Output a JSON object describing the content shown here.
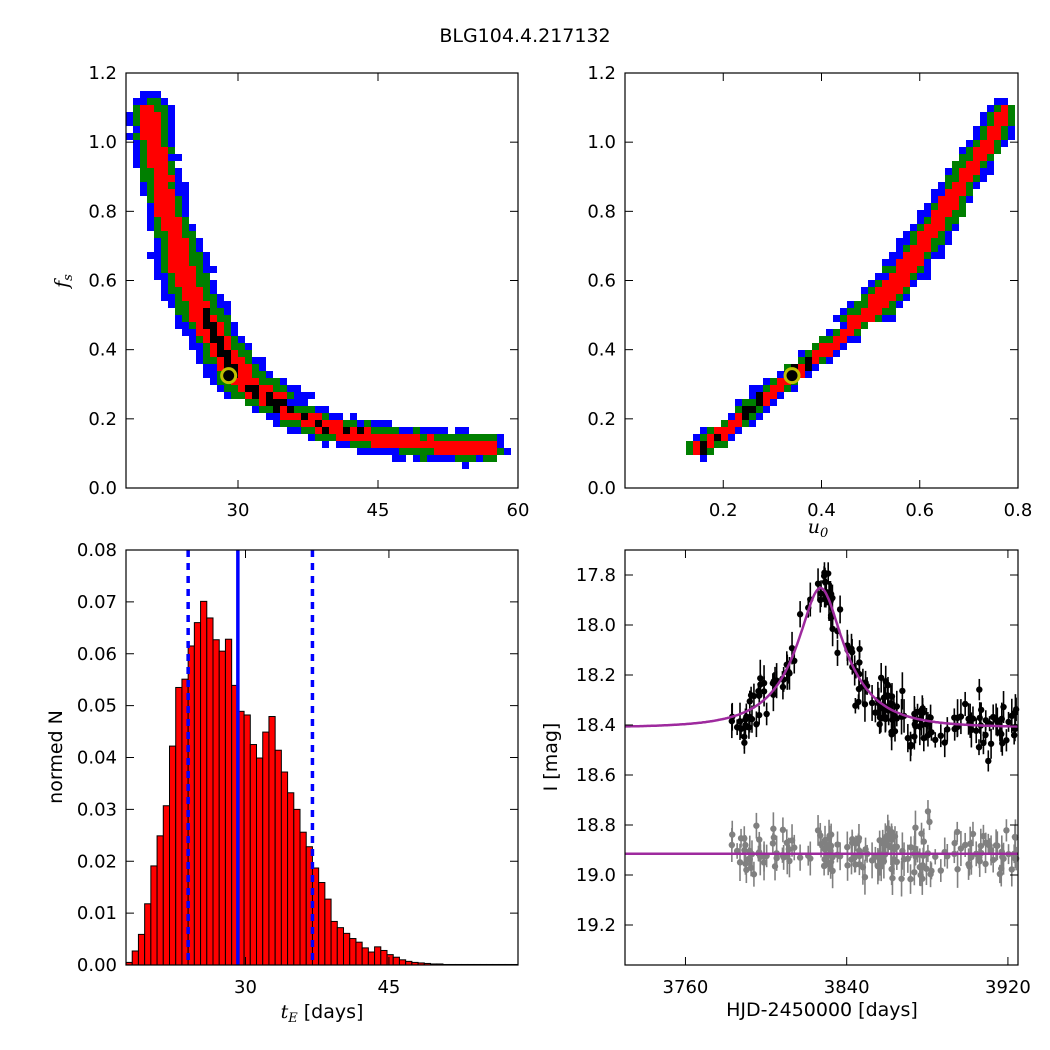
{
  "title": "BLG104.4.217132",
  "colors": {
    "blue": "#0000ff",
    "green": "#007f00",
    "red": "#ff0000",
    "black": "#000000",
    "marker_edge": "#bfbf00",
    "fit": "#9e2a9e",
    "gray": "#808080"
  },
  "chart_data": [
    {
      "id": "fs_vs_tE",
      "type": "heatmap",
      "xlabel": "",
      "ylabel": "f_s",
      "xlim": [
        18,
        60
      ],
      "ylim": [
        0.0,
        1.2
      ],
      "xticks": [
        30,
        45,
        60
      ],
      "yticks": [
        0.0,
        0.2,
        0.4,
        0.6,
        0.8,
        1.0,
        1.2
      ],
      "ytick_labels": [
        "0.0",
        "0.2",
        "0.4",
        "0.6",
        "0.8",
        "1.0",
        "1.2"
      ],
      "relation": "f_s decreases with t_E; confidence regions black < red < green < blue",
      "curve": [
        [
          20.5,
          1.08
        ],
        [
          21.5,
          0.92
        ],
        [
          22.5,
          0.8
        ],
        [
          24,
          0.64
        ],
        [
          25.5,
          0.54
        ],
        [
          27,
          0.46
        ],
        [
          29,
          0.37
        ],
        [
          31,
          0.3
        ],
        [
          33,
          0.26
        ],
        [
          36,
          0.21
        ],
        [
          39,
          0.18
        ],
        [
          42,
          0.16
        ],
        [
          46,
          0.14
        ],
        [
          50,
          0.125
        ],
        [
          54,
          0.117
        ],
        [
          57,
          0.115
        ]
      ],
      "best_fit": {
        "x": 29.0,
        "y": 0.325
      }
    },
    {
      "id": "fs_vs_u0",
      "type": "heatmap",
      "xlabel": "u_0",
      "ylabel": "",
      "xlim": [
        0.0,
        0.8
      ],
      "ylim": [
        0.0,
        1.2
      ],
      "xticks": [
        0.2,
        0.4,
        0.6,
        0.8
      ],
      "xtick_labels": [
        "0.2",
        "0.4",
        "0.6",
        "0.8"
      ],
      "yticks": [
        0.0,
        0.2,
        0.4,
        0.6,
        0.8,
        1.0,
        1.2
      ],
      "ytick_labels": [
        "0.0",
        "0.2",
        "0.4",
        "0.6",
        "0.8",
        "1.0",
        "1.2"
      ],
      "relation": "f_s increases with u_0; confidence regions black < red < green < blue",
      "curve": [
        [
          0.15,
          0.115
        ],
        [
          0.2,
          0.16
        ],
        [
          0.25,
          0.22
        ],
        [
          0.3,
          0.28
        ],
        [
          0.34,
          0.325
        ],
        [
          0.4,
          0.39
        ],
        [
          0.45,
          0.45
        ],
        [
          0.5,
          0.51
        ],
        [
          0.55,
          0.59
        ],
        [
          0.6,
          0.69
        ],
        [
          0.65,
          0.8
        ],
        [
          0.7,
          0.92
        ],
        [
          0.74,
          1.0
        ],
        [
          0.77,
          1.08
        ]
      ],
      "best_fit": {
        "x": 0.34,
        "y": 0.325
      }
    },
    {
      "id": "tE_histogram",
      "type": "bar",
      "xlabel": "t_E [days]",
      "ylabel": "normed N",
      "xlim": [
        17.5,
        58.5
      ],
      "ylim": [
        0.0,
        0.08
      ],
      "xticks": [
        30,
        45
      ],
      "yticks": [
        0.0,
        0.01,
        0.02,
        0.03,
        0.04,
        0.05,
        0.06,
        0.07,
        0.08
      ],
      "ytick_labels": [
        "0.00",
        "0.01",
        "0.02",
        "0.03",
        "0.04",
        "0.05",
        "0.06",
        "0.07",
        "0.08"
      ],
      "bin_start": 17.5,
      "bin_width": 0.65,
      "values": [
        0.0005,
        0.0027,
        0.0059,
        0.0118,
        0.0191,
        0.0249,
        0.0307,
        0.0422,
        0.0535,
        0.0551,
        0.0615,
        0.066,
        0.0701,
        0.0669,
        0.0627,
        0.0605,
        0.0628,
        0.0539,
        0.0489,
        0.0482,
        0.0425,
        0.0399,
        0.0449,
        0.0479,
        0.0414,
        0.0372,
        0.0332,
        0.03,
        0.0256,
        0.0228,
        0.0187,
        0.0159,
        0.0127,
        0.0084,
        0.0072,
        0.0061,
        0.0051,
        0.0044,
        0.0033,
        0.0025,
        0.0035,
        0.0028,
        0.002,
        0.0015,
        0.001,
        0.0007,
        0.0005,
        0.0004,
        0.0003,
        0.0002,
        0.0002,
        0.0001,
        0.0001,
        0.0001,
        0.0001,
        0.0001,
        0.0001,
        0.0001,
        0.0001,
        0.0001,
        0.0001,
        0.0001,
        0.0001
      ],
      "median": 29.2,
      "lower": 24.0,
      "upper": 37.0
    },
    {
      "id": "light_curve",
      "type": "scatter",
      "xlabel": "HJD-2450000 [days]",
      "ylabel": "I [mag]",
      "xlim": [
        3730,
        3925
      ],
      "ylim": [
        19.36,
        17.7
      ],
      "xticks": [
        3760,
        3840,
        3920
      ],
      "yticks": [
        17.8,
        18.0,
        18.2,
        18.4,
        18.6,
        18.8,
        19.0,
        19.2
      ],
      "ytick_labels": [
        "17.8",
        "18.0",
        "18.2",
        "18.4",
        "18.6",
        "18.8",
        "19.0",
        "19.2"
      ],
      "data_x_range": [
        3783,
        3925
      ],
      "model": {
        "t0": 3827,
        "u0": 0.34,
        "tE": 29.2,
        "fs": 0.325,
        "baseline": 18.41
      },
      "residual_baseline": 18.915,
      "series": [
        {
          "name": "",
          "color": "#000000",
          "description": "event photometry"
        },
        {
          "name": "",
          "color": "#808080",
          "description": "residuals offset"
        }
      ]
    }
  ]
}
